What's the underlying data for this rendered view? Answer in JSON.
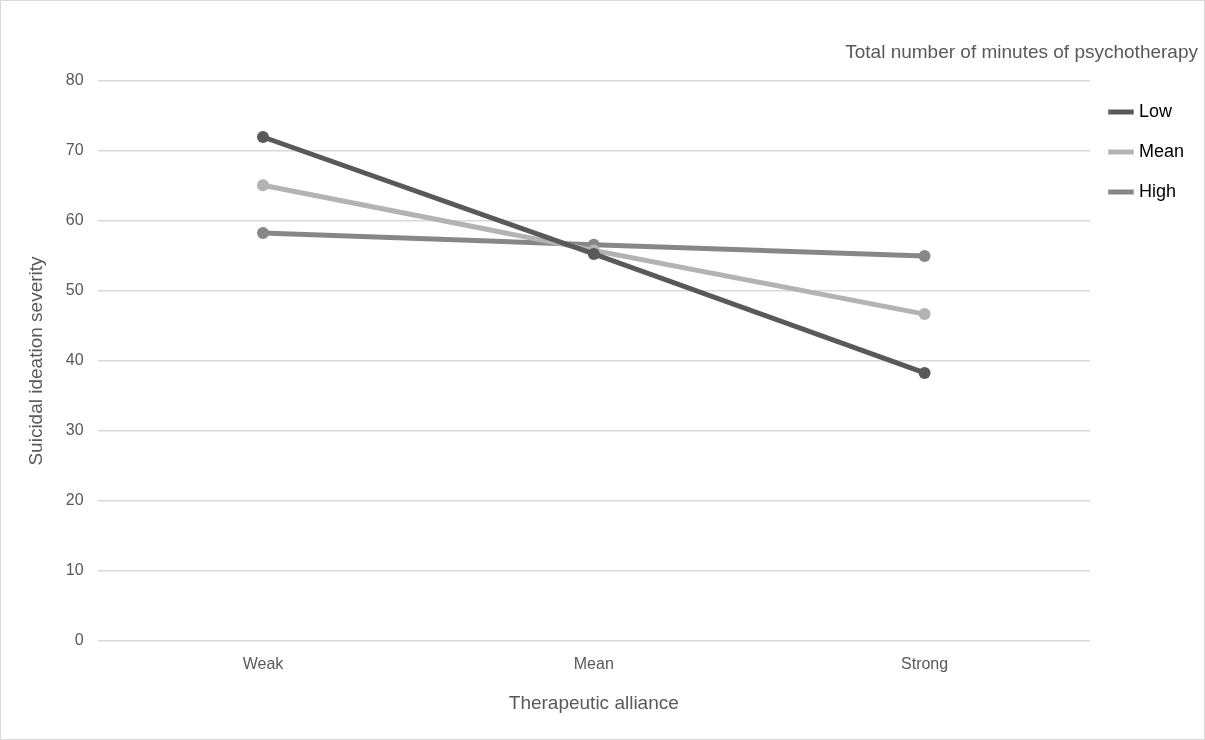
{
  "chart_data": {
    "type": "line",
    "xlabel": "Therapeutic alliance",
    "ylabel": "Suicidal ideation severity",
    "legend_title": "Total number of minutes of psychotherapy",
    "categories": [
      "Weak",
      "Mean",
      "Strong"
    ],
    "series": [
      {
        "name": "Low",
        "color": "#595959",
        "values": [
          72.0,
          55.3,
          38.3
        ]
      },
      {
        "name": "Mean",
        "color": "#b3b3b3",
        "values": [
          65.1,
          55.8,
          46.7
        ]
      },
      {
        "name": "High",
        "color": "#878787",
        "values": [
          58.3,
          56.6,
          55.0
        ]
      }
    ],
    "ylim": [
      0,
      80
    ],
    "yticks": [
      0,
      10,
      20,
      30,
      40,
      50,
      60,
      70,
      80
    ],
    "grid": "y",
    "legend": "right",
    "marker": "circle",
    "line_style": "solid"
  }
}
